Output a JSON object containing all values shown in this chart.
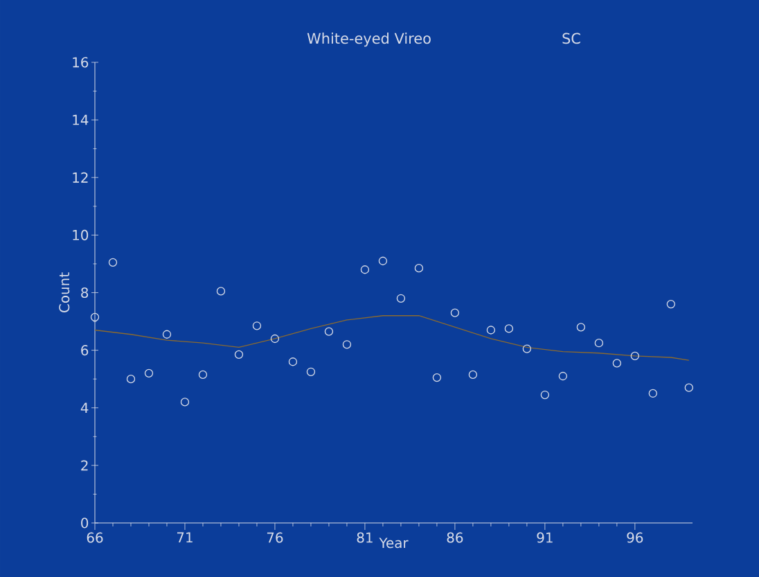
{
  "chart_data": {
    "type": "scatter",
    "title": "White-eyed Vireo",
    "subtitle": "SC",
    "xlabel": "Year",
    "ylabel": "Count",
    "x": [
      66,
      67,
      68,
      69,
      70,
      71,
      72,
      73,
      74,
      75,
      76,
      77,
      78,
      79,
      80,
      81,
      82,
      83,
      84,
      85,
      86,
      87,
      88,
      89,
      90,
      91,
      92,
      93,
      94,
      95,
      96,
      97,
      98,
      99
    ],
    "series": [
      {
        "type": "scatter",
        "color": "#d8dce8",
        "marker": "circle",
        "values": [
          7.15,
          9.05,
          5.0,
          5.2,
          6.55,
          4.2,
          5.15,
          8.05,
          5.85,
          6.85,
          6.4,
          5.6,
          5.25,
          6.65,
          6.2,
          8.8,
          9.1,
          7.8,
          8.85,
          5.05,
          7.3,
          5.15,
          6.7,
          6.75,
          6.05,
          4.45,
          5.1,
          6.8,
          6.25,
          5.55,
          5.8,
          4.5,
          7.6,
          4.7
        ]
      },
      {
        "type": "line",
        "color": "#8a6a30",
        "marker": "none",
        "line_style": "solid",
        "x": [
          66,
          68,
          70,
          72,
          74,
          76,
          78,
          80,
          82,
          84,
          86,
          88,
          90,
          92,
          94,
          96,
          98,
          99
        ],
        "values": [
          6.7,
          6.55,
          6.35,
          6.25,
          6.1,
          6.4,
          6.75,
          7.05,
          7.2,
          7.2,
          6.8,
          6.4,
          6.1,
          5.95,
          5.9,
          5.8,
          5.75,
          5.65
        ]
      }
    ],
    "xlim": [
      66,
      99.2
    ],
    "ylim": [
      0,
      16
    ],
    "xticks": [
      66,
      71,
      76,
      81,
      86,
      91,
      96
    ],
    "yticks": [
      0,
      2,
      4,
      6,
      8,
      10,
      12,
      14,
      16
    ],
    "grid": false
  }
}
